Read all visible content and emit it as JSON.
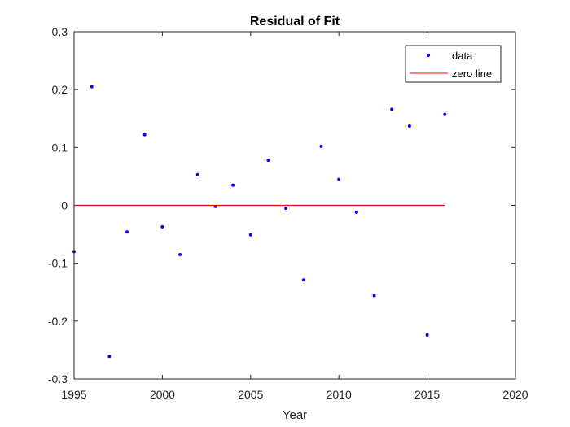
{
  "chart_data": {
    "type": "scatter",
    "title": "Residual of Fit",
    "xlabel": "Year",
    "ylabel": "",
    "xlim": [
      1995,
      2020
    ],
    "ylim": [
      -0.3,
      0.3
    ],
    "xticks": [
      1995,
      2000,
      2005,
      2010,
      2015,
      2020
    ],
    "yticks": [
      -0.3,
      -0.2,
      -0.1,
      0,
      0.1,
      0.2,
      0.3
    ],
    "xtick_labels": [
      "1995",
      "2000",
      "2005",
      "2010",
      "2015",
      "2020"
    ],
    "ytick_labels": [
      "-0.3",
      "-0.2",
      "-0.1",
      "0",
      "0.1",
      "0.2",
      "0.3"
    ],
    "grid": false,
    "legend_position": "top-right",
    "series": [
      {
        "name": "data",
        "style": "points",
        "color": "#0000ff",
        "x": [
          1995,
          1996,
          1997,
          1998,
          1999,
          2000,
          2001,
          2002,
          2003,
          2004,
          2005,
          2006,
          2007,
          2008,
          2009,
          2010,
          2011,
          2012,
          2013,
          2014,
          2015,
          2016
        ],
        "y": [
          -0.08,
          0.205,
          -0.261,
          -0.046,
          0.122,
          -0.037,
          -0.085,
          0.053,
          -0.002,
          0.035,
          -0.051,
          0.078,
          -0.005,
          -0.129,
          0.102,
          0.045,
          -0.012,
          -0.156,
          0.166,
          0.137,
          -0.224,
          0.157
        ]
      },
      {
        "name": "zero line",
        "style": "line",
        "color": "#ff0000",
        "x": [
          1995,
          2016
        ],
        "y": [
          0,
          0
        ]
      }
    ]
  }
}
